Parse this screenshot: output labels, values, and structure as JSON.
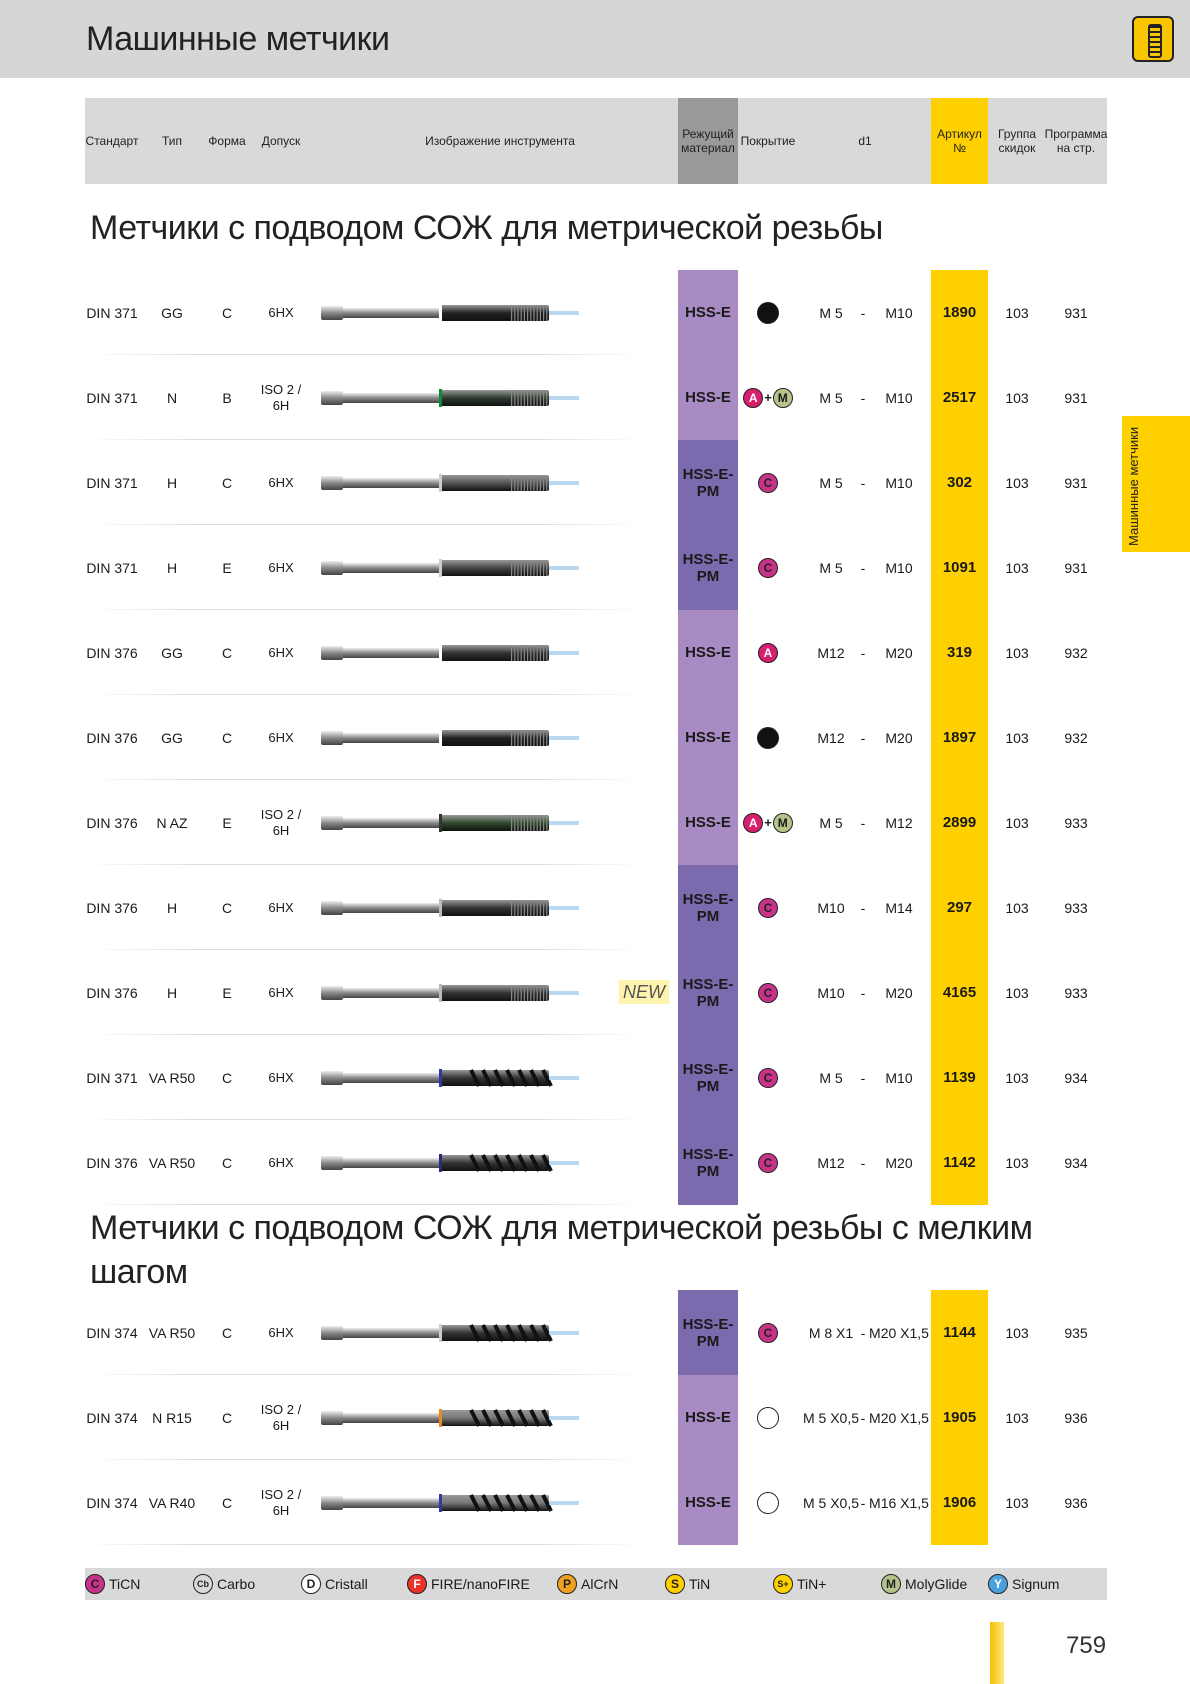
{
  "header": {
    "title": "Машинные метчики"
  },
  "columns": {
    "standard": "Стандарт",
    "type": "Тип",
    "form": "Форма",
    "tolerance": "Допуск",
    "image": "Изображение инструмента",
    "material": "Режущий материал",
    "coating": "Покрытие",
    "d1": "d1",
    "article": "Артикул №",
    "discount": "Группа скидок",
    "program": "Программа на стр."
  },
  "sections": [
    {
      "title": "Метчики с подводом СОЖ для метрической резьбы"
    },
    {
      "title": "Метчики с подводом СОЖ для метрической резьбы с мелким шагом"
    }
  ],
  "rows": [
    {
      "std": "DIN 371",
      "type": "GG",
      "form": "C",
      "tol": "6HX",
      "mat": "HSS-E",
      "coat": "black",
      "d1a": "M 5",
      "dash": "-",
      "d1b": "M10",
      "art": "1890",
      "grp": "103",
      "page": "931"
    },
    {
      "std": "DIN 371",
      "type": "N",
      "form": "B",
      "tol": "ISO 2 / 6H",
      "mat": "HSS-E",
      "coat": "A+M",
      "d1a": "M 5",
      "dash": "-",
      "d1b": "M10",
      "art": "2517",
      "grp": "103",
      "page": "931"
    },
    {
      "std": "DIN 371",
      "type": "H",
      "form": "C",
      "tol": "6HX",
      "mat": "HSS-E-PM",
      "coat": "C",
      "d1a": "M 5",
      "dash": "-",
      "d1b": "M10",
      "art": "302",
      "grp": "103",
      "page": "931"
    },
    {
      "std": "DIN 371",
      "type": "H",
      "form": "E",
      "tol": "6HX",
      "mat": "HSS-E-PM",
      "coat": "C",
      "d1a": "M 5",
      "dash": "-",
      "d1b": "M10",
      "art": "1091",
      "grp": "103",
      "page": "931"
    },
    {
      "std": "DIN 376",
      "type": "GG",
      "form": "C",
      "tol": "6HX",
      "mat": "HSS-E",
      "coat": "A",
      "d1a": "M12",
      "dash": "-",
      "d1b": "M20",
      "art": "319",
      "grp": "103",
      "page": "932"
    },
    {
      "std": "DIN 376",
      "type": "GG",
      "form": "C",
      "tol": "6HX",
      "mat": "HSS-E",
      "coat": "black",
      "d1a": "M12",
      "dash": "-",
      "d1b": "M20",
      "art": "1897",
      "grp": "103",
      "page": "932"
    },
    {
      "std": "DIN 376",
      "type": "N AZ",
      "form": "E",
      "tol": "ISO 2 / 6H",
      "mat": "HSS-E",
      "coat": "A+M",
      "d1a": "M 5",
      "dash": "-",
      "d1b": "M12",
      "art": "2899",
      "grp": "103",
      "page": "933"
    },
    {
      "std": "DIN 376",
      "type": "H",
      "form": "C",
      "tol": "6HX",
      "mat": "HSS-E-PM",
      "coat": "C",
      "d1a": "M10",
      "dash": "-",
      "d1b": "M14",
      "art": "297",
      "grp": "103",
      "page": "933"
    },
    {
      "std": "DIN 376",
      "type": "H",
      "form": "E",
      "tol": "6HX",
      "mat": "HSS-E-PM",
      "coat": "C",
      "d1a": "M10",
      "dash": "-",
      "d1b": "M20",
      "art": "4165",
      "grp": "103",
      "page": "933",
      "new": "NEW"
    },
    {
      "std": "DIN 371",
      "type": "VA R50",
      "form": "C",
      "tol": "6HX",
      "mat": "HSS-E-PM",
      "coat": "C",
      "d1a": "M 5",
      "dash": "-",
      "d1b": "M10",
      "art": "1139",
      "grp": "103",
      "page": "934"
    },
    {
      "std": "DIN 376",
      "type": "VA R50",
      "form": "C",
      "tol": "6HX",
      "mat": "HSS-E-PM",
      "coat": "C",
      "d1a": "M12",
      "dash": "-",
      "d1b": "M20",
      "art": "1142",
      "grp": "103",
      "page": "934"
    },
    {
      "std": "DIN 374",
      "type": "VA R50",
      "form": "C",
      "tol": "6HX",
      "mat": "HSS-E-PM",
      "coat": "C",
      "d1a": "M 8 X1",
      "dash": "-",
      "d1b": "M20 X1,5",
      "art": "1144",
      "grp": "103",
      "page": "935"
    },
    {
      "std": "DIN 374",
      "type": "N R15",
      "form": "C",
      "tol": "ISO 2 / 6H",
      "mat": "HSS-E",
      "coat": "empty",
      "d1a": "M 5 X0,5",
      "dash": "-",
      "d1b": "M20 X1,5",
      "art": "1905",
      "grp": "103",
      "page": "936"
    },
    {
      "std": "DIN 374",
      "type": "VA R40",
      "form": "C",
      "tol": "ISO 2 / 6H",
      "mat": "HSS-E",
      "coat": "empty",
      "d1a": "M 5 X0,5",
      "dash": "-",
      "d1b": "M16 X1,5",
      "art": "1906",
      "grp": "103",
      "page": "936"
    }
  ],
  "side_tab": "Машинные метчики",
  "legend": [
    {
      "code": "C",
      "label": "TiCN",
      "color": "#c8338a"
    },
    {
      "code": "Cb",
      "label": "Carbo",
      "color": "#d9d9d9"
    },
    {
      "code": "D",
      "label": "Cristall",
      "color": "#ffffff"
    },
    {
      "code": "F",
      "label": "FIRE/nanoFIRE",
      "color": "#e8322a"
    },
    {
      "code": "P",
      "label": "AlCrN",
      "color": "#f0a020"
    },
    {
      "code": "S",
      "label": "TiN",
      "color": "#ffd000"
    },
    {
      "code": "S+",
      "label": "TiN+",
      "color": "#ffd000"
    },
    {
      "code": "M",
      "label": "MolyGlide",
      "color": "#b5c48a"
    },
    {
      "code": "Y",
      "label": "Signum",
      "color": "#4aa0dc"
    }
  ],
  "badges": {
    "C": "C",
    "A": "A",
    "M": "M",
    "plus": "+"
  },
  "colors": {
    "hss_e": "#a98bc4",
    "hss_e_pm": "#7b6aae",
    "article": "#ffd000"
  },
  "page_number": "759"
}
